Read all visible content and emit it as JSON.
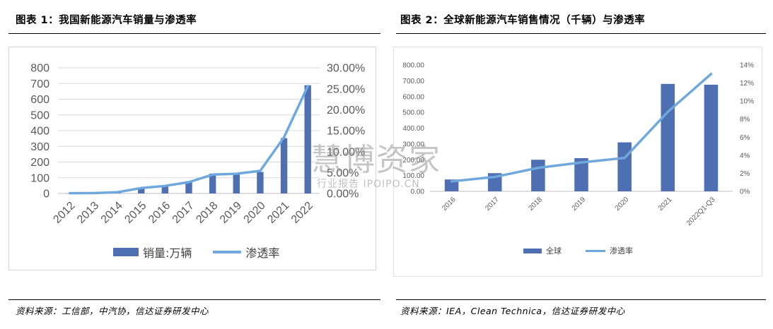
{
  "left": {
    "title": "图表 1：我国新能源汽车销量与渗透率",
    "source": "资料来源：工信部，中汽协，信达证券研发中心",
    "legend": {
      "bar": "销量:万辆",
      "line": "渗透率"
    }
  },
  "right": {
    "title": "图表 2：全球新能源汽车销售情况（千辆）与渗透率",
    "source": "资料来源：IEA，Clean Technica，信达证券研发中心",
    "legend": {
      "bar": "全球",
      "line": "渗透率"
    }
  },
  "watermark": {
    "big": "慧博资家",
    "small": "行业报告 IPOIPO.CN"
  },
  "colors": {
    "bar": "#4e6fb2",
    "line": "#6fa8dc",
    "grid": "#d9d9d9",
    "axis_text": "#595959"
  },
  "chart_data": [
    {
      "type": "bar",
      "categories": [
        "2012",
        "2013",
        "2014",
        "2015",
        "2016",
        "2017",
        "2018",
        "2019",
        "2020",
        "2021",
        "2022"
      ],
      "series": [
        {
          "name": "销量:万辆",
          "type": "bar",
          "axis": "left",
          "values": [
            1.3,
            1.8,
            7.5,
            33,
            51,
            78,
            126,
            121,
            137,
            352,
            689
          ]
        },
        {
          "name": "渗透率",
          "type": "line",
          "axis": "right",
          "values": [
            0.0006,
            0.0008,
            0.003,
            0.013,
            0.018,
            0.027,
            0.045,
            0.047,
            0.054,
            0.134,
            0.256
          ]
        }
      ],
      "y_left": {
        "min": 0,
        "max": 800,
        "step": 100,
        "tick_labels": [
          "0",
          "100",
          "200",
          "300",
          "400",
          "500",
          "600",
          "700",
          "800"
        ]
      },
      "y_right": {
        "min": 0,
        "max": 0.3,
        "step": 0.05,
        "tick_labels": [
          "0.00%",
          "5.00%",
          "10.00%",
          "15.00%",
          "20.00%",
          "25.00%",
          "30.00%"
        ]
      },
      "grid": true,
      "legend_position": "bottom"
    },
    {
      "type": "bar",
      "categories": [
        "2016",
        "2017",
        "2018",
        "2019",
        "2020",
        "2021",
        "2022Q1-Q3"
      ],
      "series": [
        {
          "name": "全球",
          "type": "bar",
          "axis": "left",
          "values": [
            75,
            115,
            200,
            210,
            310,
            680,
            675
          ]
        },
        {
          "name": "渗透率",
          "type": "line",
          "axis": "right",
          "values": [
            0.011,
            0.016,
            0.026,
            0.032,
            0.037,
            0.088,
            0.13
          ]
        }
      ],
      "y_left": {
        "min": 0,
        "max": 800,
        "step": 100,
        "tick_labels": [
          "0.00",
          "100.00",
          "200.00",
          "300.00",
          "400.00",
          "500.00",
          "600.00",
          "700.00",
          "800.00"
        ]
      },
      "y_right": {
        "min": 0,
        "max": 0.14,
        "step": 0.02,
        "tick_labels": [
          "0%",
          "2%",
          "4%",
          "6%",
          "8%",
          "10%",
          "12%",
          "14%"
        ]
      },
      "grid": false,
      "legend_position": "bottom"
    }
  ]
}
